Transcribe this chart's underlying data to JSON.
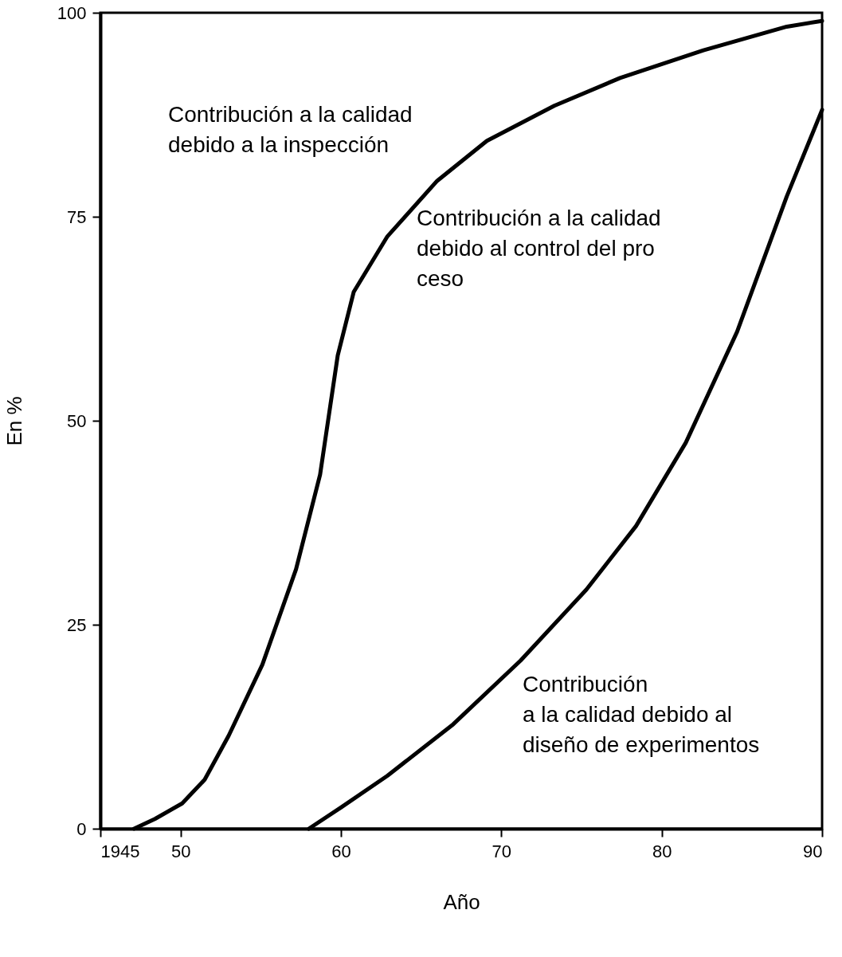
{
  "chart_data": {
    "type": "line",
    "xlabel": "Año",
    "ylabel": "En %",
    "xlim": [
      1945,
      1990
    ],
    "ylim": [
      0,
      100
    ],
    "xticks": [
      {
        "value": 1945,
        "label": "1945"
      },
      {
        "value": 1950,
        "label": "50"
      },
      {
        "value": 1960,
        "label": "60"
      },
      {
        "value": 1970,
        "label": "70"
      },
      {
        "value": 1980,
        "label": "80"
      },
      {
        "value": 1990,
        "label": "90"
      }
    ],
    "yticks": [
      0,
      25,
      50,
      75,
      100
    ],
    "series": [
      {
        "color": "#000000",
        "x": [
          1947.1,
          1948.4,
          1950.1,
          1951.5,
          1953.0,
          1955.1,
          1957.2,
          1958.7,
          1959.8,
          1960.8,
          1962.9,
          1966.0,
          1969.1,
          1973.3,
          1977.4,
          1982.6,
          1987.8,
          1990
        ],
        "values": [
          0,
          1.2,
          3.1,
          6,
          11.4,
          20.1,
          31.8,
          43.4,
          58,
          65.8,
          72.6,
          79.4,
          84.3,
          88.6,
          92,
          95.4,
          98.3,
          99
        ]
      },
      {
        "color": "#000000",
        "x": [
          1958.0,
          1960,
          1962.9,
          1967.0,
          1971.2,
          1975.3,
          1978.4,
          1981.5,
          1984.7,
          1987.8,
          1990
        ],
        "values": [
          0,
          2.6,
          6.5,
          12.8,
          20.6,
          29.3,
          37.1,
          47.3,
          60.9,
          77.5,
          88.1
        ]
      }
    ],
    "annotations": [
      "Contribución a la calidad\ndebido a la inspección",
      "Contribución a la calidad\ndebido al control del pro\nceso",
      "Contribución\na la calidad debido al\ndiseño de experimentos"
    ],
    "grid": false,
    "marker": "none",
    "line_style": "solid"
  }
}
